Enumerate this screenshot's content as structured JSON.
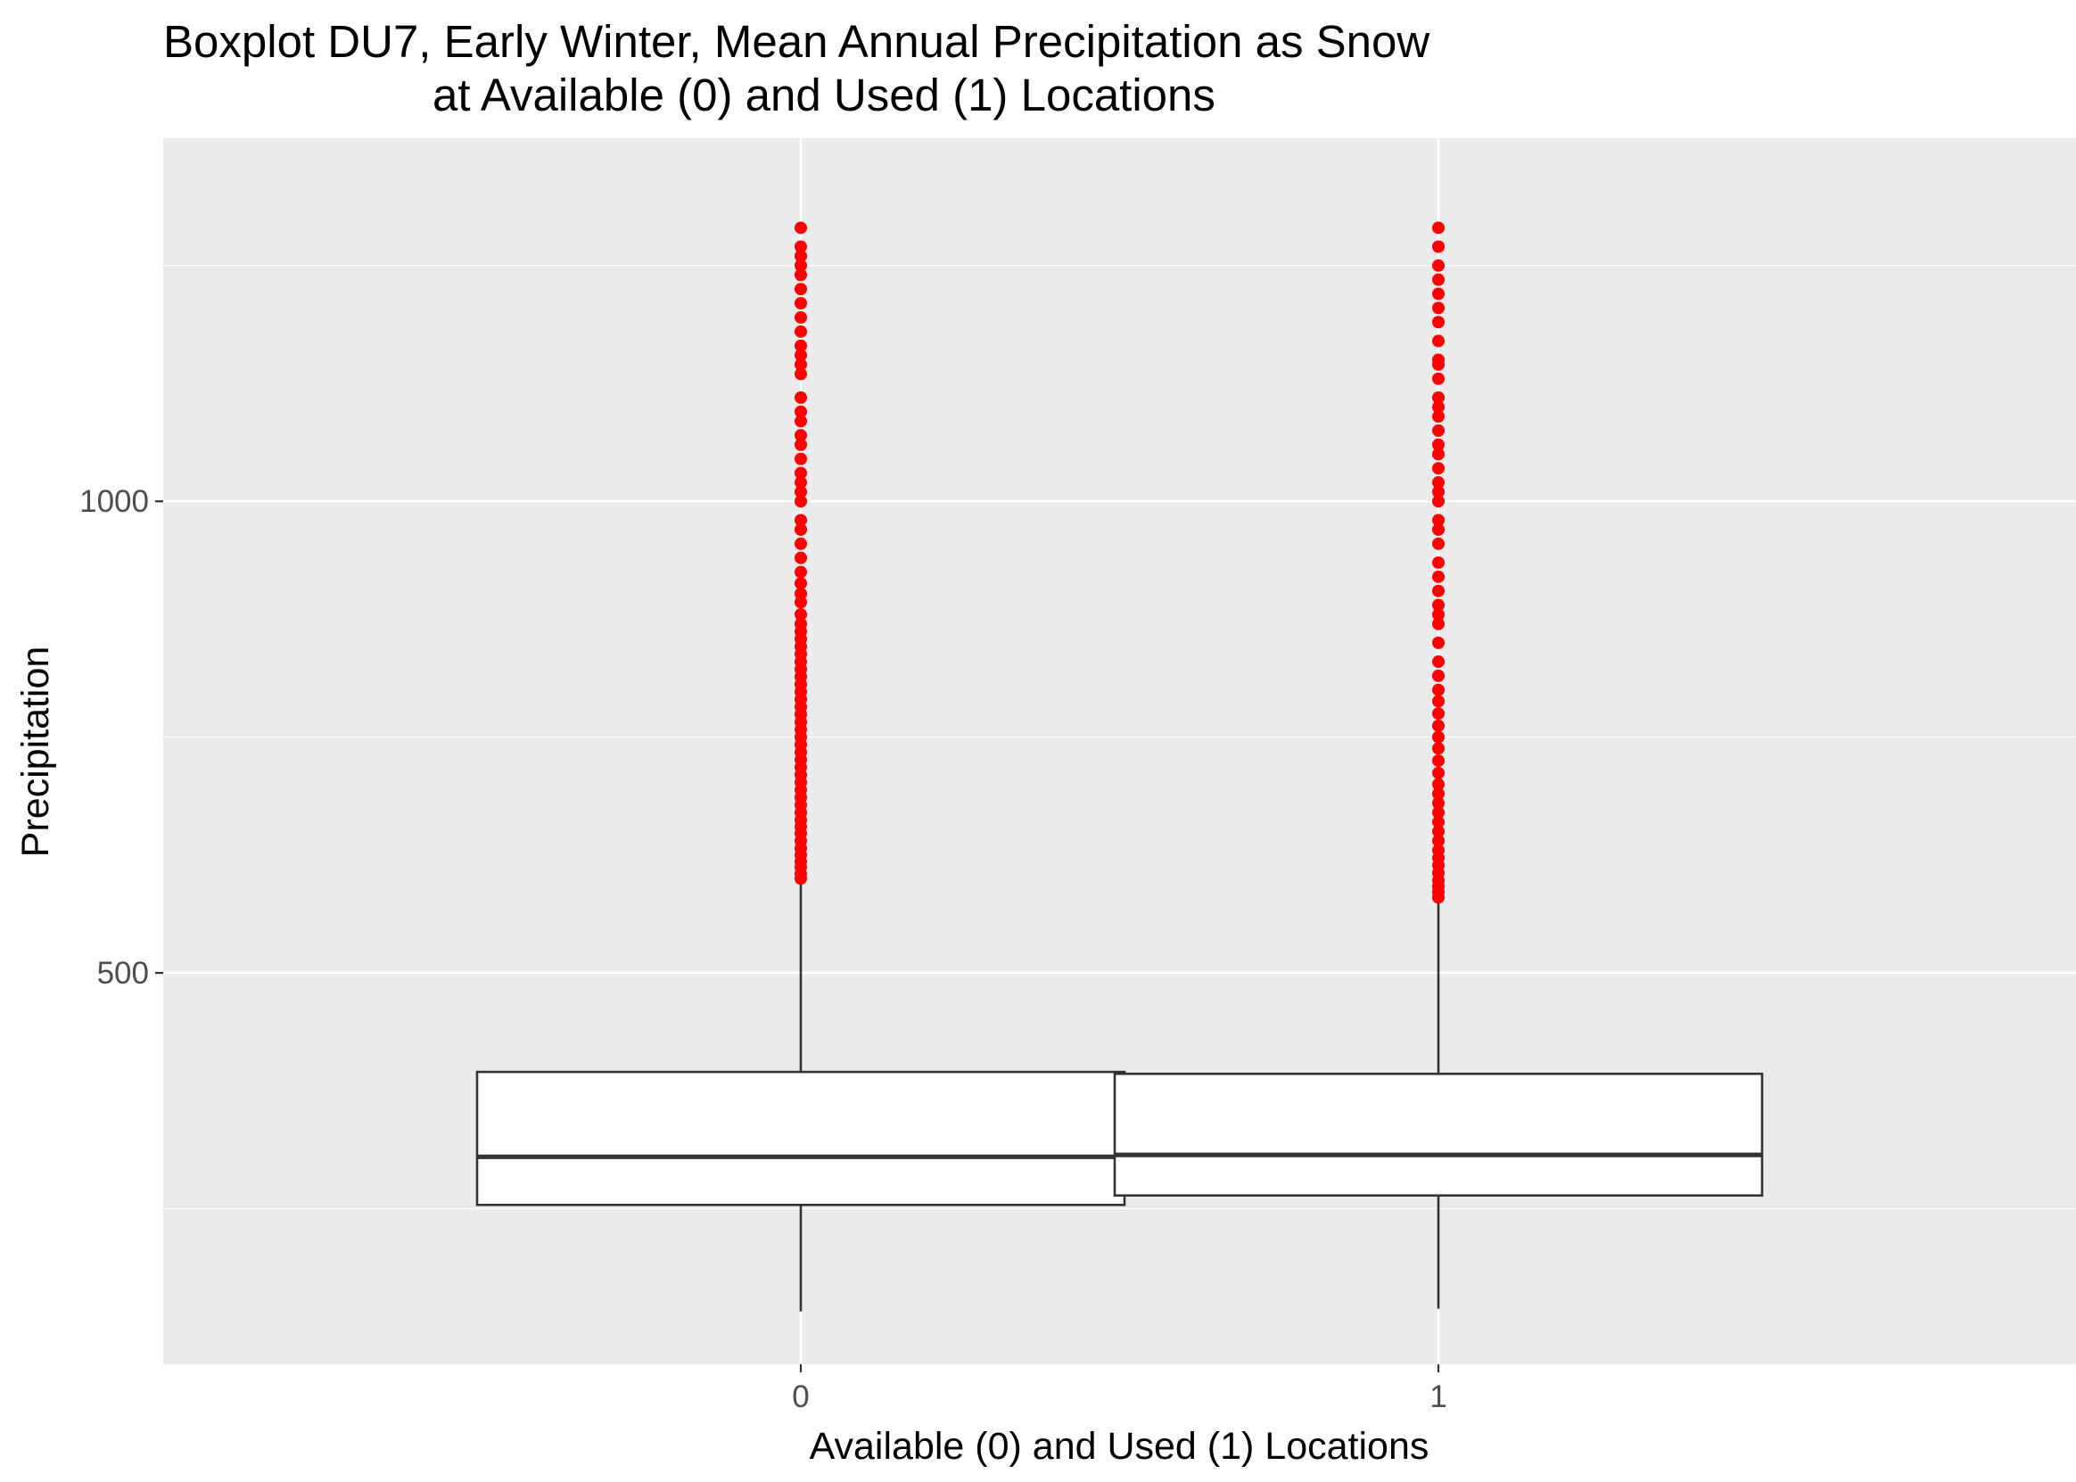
{
  "chart_data": {
    "type": "boxplot",
    "title": "Boxplot DU7, Early Winter, Mean Annual Precipitation as Snow",
    "subtitle": "at Available (0) and Used (1) Locations",
    "xlabel": "Available (0) and Used (1) Locations",
    "ylabel": "Precipitation",
    "categories": [
      "0",
      "1"
    ],
    "yticks": [
      500,
      1000
    ],
    "ylim": [
      85,
      1385
    ],
    "grid": true,
    "colors": {
      "panel_background": "#ebebeb",
      "grid_major": "#ffffff",
      "box_fill": "#ffffff",
      "box_line": "#333333",
      "outlier": "#ff0000"
    },
    "boxes": [
      {
        "category": "0",
        "whisker_low": 141,
        "q1": 254,
        "median": 305,
        "q3": 395,
        "whisker_high": 600,
        "outliers": [
          600,
          605,
          612,
          618,
          625,
          632,
          640,
          648,
          655,
          662,
          670,
          678,
          686,
          694,
          702,
          710,
          718,
          726,
          734,
          742,
          750,
          758,
          766,
          774,
          782,
          790,
          798,
          806,
          814,
          822,
          830,
          838,
          846,
          854,
          862,
          870,
          880,
          893,
          902,
          913,
          925,
          940,
          955,
          970,
          980,
          1000,
          1010,
          1020,
          1030,
          1045,
          1060,
          1070,
          1085,
          1095,
          1110,
          1135,
          1145,
          1155,
          1165,
          1180,
          1195,
          1210,
          1225,
          1240,
          1250,
          1260,
          1270,
          1290
        ]
      },
      {
        "category": "1",
        "whisker_low": 144,
        "q1": 264,
        "median": 307,
        "q3": 393,
        "whisker_high": 580,
        "outliers": [
          580,
          586,
          592,
          598,
          606,
          614,
          622,
          630,
          640,
          650,
          660,
          670,
          680,
          690,
          700,
          712,
          725,
          738,
          750,
          762,
          775,
          788,
          800,
          815,
          830,
          850,
          870,
          880,
          890,
          905,
          920,
          935,
          955,
          970,
          980,
          1000,
          1010,
          1020,
          1035,
          1050,
          1060,
          1075,
          1090,
          1100,
          1110,
          1130,
          1145,
          1150,
          1170,
          1190,
          1205,
          1220,
          1235,
          1250,
          1270,
          1290
        ]
      }
    ]
  }
}
